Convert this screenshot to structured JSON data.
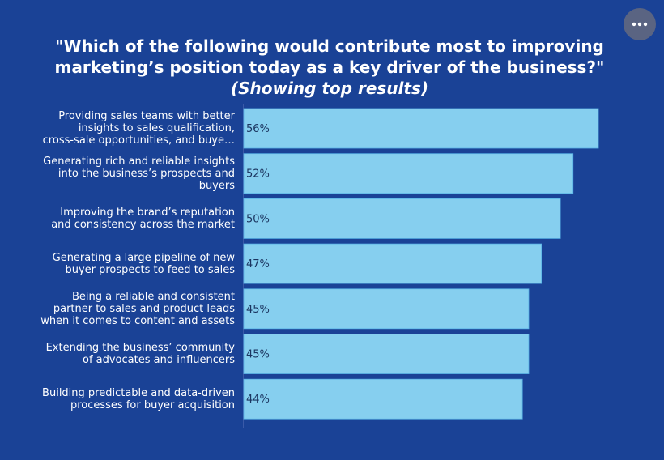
{
  "title": {
    "line1": "\"Which of the following would contribute most to improving",
    "line2": "marketing’s position today as a key driver of the business?\"",
    "subtitle": "(Showing top results)"
  },
  "menu": {
    "icon": "more-horizontal-icon"
  },
  "colors": {
    "background": "#1a4296",
    "bar": "#86cfef",
    "bar_stroke": "#5ab4e6",
    "value_text": "#1b3560",
    "axis": "#3a5aa8",
    "menu_button": "#5a6482"
  },
  "chart_data": {
    "type": "bar",
    "orientation": "horizontal",
    "title": "\"Which of the following would contribute most to improving marketing’s position today as a key driver of the business?\" (Showing top results)",
    "categories": [
      [
        "Providing sales teams with better",
        "insights to sales qualification,",
        "cross-sale opportunities, and buye…"
      ],
      [
        "Generating rich and reliable insights",
        "into the business’s prospects and",
        "buyers"
      ],
      [
        "Improving the brand’s reputation",
        "and consistency across the market"
      ],
      [
        "Generating a large pipeline of new",
        "buyer prospects to feed to sales"
      ],
      [
        "Being a reliable and consistent",
        "partner to sales and product leads",
        "when it comes to content and assets"
      ],
      [
        "Extending the business’ community",
        "of advocates and influencers"
      ],
      [
        "Building predictable and data-driven",
        "processes for buyer acquisition"
      ]
    ],
    "values": [
      56,
      52,
      50,
      47,
      45,
      45,
      44
    ],
    "value_labels": [
      "56%",
      "52%",
      "50%",
      "47%",
      "45%",
      "45%",
      "44%"
    ],
    "unit": "%",
    "xlim": [
      0,
      56
    ],
    "grid": false,
    "legend": "none"
  }
}
